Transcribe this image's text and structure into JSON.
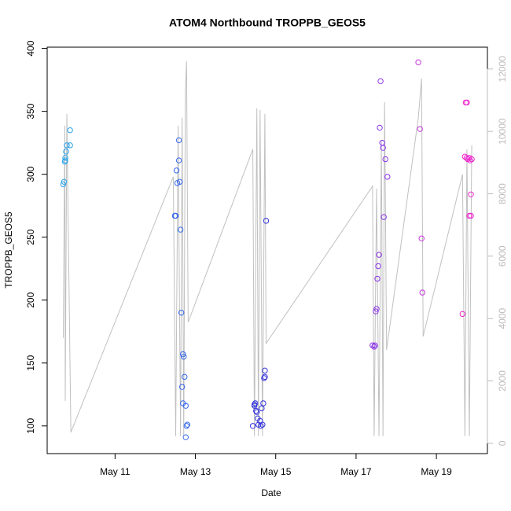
{
  "chart_data": {
    "type": "scatter",
    "title": "ATOM4 Northbound TROPPB_GEOS5",
    "x_label": "Date",
    "y_label": "TROPPB_GEOS5",
    "xlim": [
      9.31,
      20.27
    ],
    "xticks": [
      {
        "value": 11,
        "label": "May 11"
      },
      {
        "value": 13,
        "label": "May 13"
      },
      {
        "value": 15,
        "label": "May 15"
      },
      {
        "value": 17,
        "label": "May 17"
      },
      {
        "value": 19,
        "label": "May 19"
      }
    ],
    "ylim": [
      78,
      401
    ],
    "yticks": [
      100,
      150,
      200,
      250,
      300,
      350,
      400
    ],
    "y2lim": [
      -330,
      12700
    ],
    "y2ticks": [
      0,
      2000,
      4000,
      6000,
      8000,
      10000,
      12000
    ],
    "series": [
      {
        "color": "#2aa3ea",
        "x": [
          9.71,
          9.73,
          9.75,
          9.76,
          9.76,
          9.78,
          9.8,
          9.88,
          9.88
        ],
        "values": [
          292,
          294,
          310,
          311,
          313,
          318,
          323,
          323,
          335
        ]
      },
      {
        "color": "#3468ec",
        "x": [
          12.49,
          12.51,
          12.53,
          12.55,
          12.61,
          12.59,
          12.59,
          12.63,
          12.65,
          12.69,
          12.71,
          12.73,
          12.67,
          12.69,
          12.76,
          12.8,
          12.78,
          12.76
        ],
        "values": [
          267,
          267,
          303,
          293,
          294,
          311,
          327,
          256,
          190,
          157,
          155,
          139,
          131,
          118,
          116,
          101,
          100,
          91
        ]
      },
      {
        "color": "#3535dc",
        "x": [
          14.43,
          14.47,
          14.47,
          14.49,
          14.51,
          14.53,
          14.55,
          14.61,
          14.57,
          14.63,
          14.67,
          14.65,
          14.69,
          14.71,
          14.73,
          14.73,
          14.76
        ],
        "values": [
          100,
          117,
          116,
          118,
          112,
          111,
          106,
          104,
          101,
          100,
          101,
          114,
          118,
          138,
          139,
          144,
          263
        ]
      },
      {
        "color": "#8a33ea",
        "x": [
          17.41,
          17.45,
          17.47,
          17.49,
          17.51,
          17.53,
          17.55,
          17.57,
          17.59,
          17.61,
          17.65,
          17.67,
          17.69,
          17.73,
          17.78
        ],
        "values": [
          164,
          163,
          164,
          191,
          193,
          217,
          227,
          236,
          337,
          374,
          325,
          321,
          266,
          312,
          298
        ]
      },
      {
        "color": "#c433dc",
        "x": [
          18.55,
          18.59,
          18.63,
          18.65
        ],
        "values": [
          389,
          336,
          249,
          206
        ]
      },
      {
        "color": "#ee22cc",
        "x": [
          19.65,
          19.71,
          19.75,
          19.73,
          19.76,
          19.78,
          19.82,
          19.84,
          19.86,
          19.82,
          19.86,
          19.88
        ],
        "values": [
          189,
          314,
          313,
          357,
          357,
          312,
          313,
          311,
          284,
          267,
          267,
          312
        ]
      },
      {
        "type": "line",
        "axis": "y2",
        "color": "#c0c0c0",
        "x": [
          9.71,
          9.75,
          9.76,
          9.8,
          9.9,
          12.45,
          12.51,
          12.57,
          12.63,
          12.67,
          12.71,
          12.75,
          12.78,
          12.82,
          14.43,
          14.47,
          14.53,
          14.57,
          14.61,
          14.67,
          14.73,
          14.76,
          17.41,
          17.45,
          17.51,
          17.57,
          17.63,
          17.67,
          17.71,
          17.76,
          18.55,
          18.63,
          18.67,
          19.65,
          19.71,
          19.76,
          19.82,
          19.88
        ],
        "values": [
          3378,
          10185,
          1361,
          10563,
          353,
          8546,
          227,
          10185,
          227,
          10437,
          227,
          11244,
          12252,
          3882,
          9428,
          227,
          10739,
          227,
          10689,
          227,
          10563,
          3202,
          8244,
          227,
          8168,
          227,
          9681,
          227,
          10941,
          3000,
          10437,
          11697,
          3429,
          8622,
          227,
          9428,
          227,
          9555
        ]
      }
    ]
  }
}
